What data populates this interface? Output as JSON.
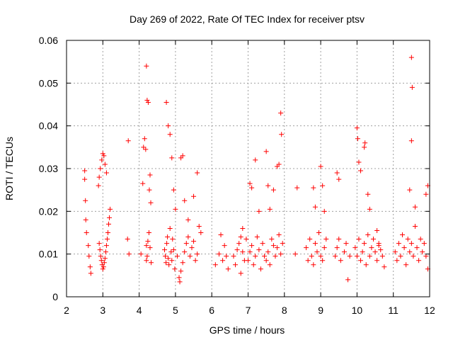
{
  "chart_data": {
    "type": "scatter",
    "title": "Day 269 of 2022, Rate Of TEC Index for receiver ptsv",
    "xlabel": "GPS time / hours",
    "ylabel": "ROTI / TECUs",
    "xlim": [
      2,
      12
    ],
    "ylim": [
      0,
      0.06
    ],
    "xticks": [
      "2",
      "3",
      "4",
      "5",
      "6",
      "7",
      "8",
      "9",
      "10",
      "11",
      "12"
    ],
    "yticks": [
      "0",
      "0.01",
      "0.02",
      "0.03",
      "0.04",
      "0.05",
      "0.06"
    ],
    "grid": true,
    "marker": "plus",
    "color": "#ff0000",
    "series": [
      {
        "name": "ROTI",
        "x": [
          2.5,
          2.5,
          2.52,
          2.53,
          2.55,
          2.6,
          2.62,
          2.65,
          2.67,
          2.9,
          2.92,
          2.94,
          2.96,
          2.98,
          3.0,
          3.02,
          3.04,
          3.06,
          3.08,
          3.1,
          3.12,
          3.14,
          3.16,
          3.18,
          3.2,
          2.88,
          2.9,
          2.93,
          2.97,
          3.0,
          3.03,
          3.06,
          3.1,
          3.7,
          3.72,
          3.68,
          4.05,
          4.1,
          4.12,
          4.15,
          4.18,
          4.2,
          4.22,
          4.25,
          4.28,
          4.3,
          4.32,
          4.2,
          4.2,
          4.22,
          4.24,
          4.27,
          4.3,
          4.33,
          4.7,
          4.72,
          4.74,
          4.76,
          4.78,
          4.8,
          4.82,
          4.85,
          4.88,
          4.9,
          4.92,
          4.95,
          4.98,
          5.0,
          4.75,
          4.8,
          4.85,
          4.9,
          4.95,
          5.05,
          5.1,
          5.12,
          5.15,
          5.2,
          5.25,
          5.3,
          5.35,
          5.4,
          5.45,
          5.5,
          5.55,
          5.6,
          5.65,
          5.7,
          5.15,
          5.2,
          5.25,
          5.35,
          5.5,
          5.6,
          6.1,
          6.2,
          6.25,
          6.3,
          6.35,
          6.4,
          6.45,
          6.6,
          6.65,
          6.7,
          6.75,
          6.8,
          6.85,
          6.9,
          6.95,
          6.8,
          6.85,
          7.0,
          7.05,
          7.1,
          7.15,
          7.2,
          7.25,
          7.3,
          7.35,
          7.4,
          7.45,
          7.5,
          7.55,
          7.6,
          7.65,
          7.7,
          7.75,
          7.8,
          7.85,
          7.9,
          7.95,
          7.05,
          7.1,
          7.2,
          7.3,
          7.5,
          7.55,
          7.6,
          7.7,
          7.8,
          7.85,
          7.9,
          7.92,
          8.3,
          8.35,
          8.6,
          8.65,
          8.7,
          8.75,
          8.8,
          8.85,
          8.9,
          8.95,
          9.0,
          9.05,
          9.1,
          9.15,
          8.8,
          8.85,
          9.0,
          9.05,
          9.1,
          9.4,
          9.45,
          9.5,
          9.55,
          9.65,
          9.7,
          9.75,
          9.8,
          9.45,
          9.5,
          9.95,
          10.0,
          10.05,
          10.1,
          10.15,
          10.2,
          10.25,
          10.3,
          10.35,
          10.4,
          10.45,
          10.5,
          10.55,
          10.6,
          10.65,
          10.7,
          10.75,
          10.0,
          10.02,
          10.05,
          10.1,
          10.2,
          10.22,
          10.3,
          10.35,
          10.55,
          10.6,
          11.05,
          11.1,
          11.15,
          11.2,
          11.25,
          11.3,
          11.35,
          11.4,
          11.45,
          11.5,
          11.55,
          11.6,
          11.65,
          11.7,
          11.75,
          11.8,
          11.85,
          11.9,
          11.95,
          11.5,
          11.52,
          11.5,
          11.45,
          11.6,
          11.95,
          11.9
        ],
        "y": [
          0.0295,
          0.0275,
          0.0225,
          0.018,
          0.015,
          0.012,
          0.0095,
          0.007,
          0.0055,
          0.0125,
          0.011,
          0.0095,
          0.0085,
          0.0075,
          0.0065,
          0.007,
          0.008,
          0.009,
          0.0105,
          0.012,
          0.0135,
          0.015,
          0.017,
          0.0185,
          0.0205,
          0.026,
          0.028,
          0.03,
          0.032,
          0.0335,
          0.033,
          0.031,
          0.029,
          0.0365,
          0.01,
          0.0135,
          0.01,
          0.0265,
          0.035,
          0.037,
          0.0345,
          0.054,
          0.046,
          0.0455,
          0.025,
          0.0285,
          0.022,
          0.012,
          0.0085,
          0.0095,
          0.013,
          0.015,
          0.0115,
          0.008,
          0.011,
          0.0095,
          0.008,
          0.0125,
          0.014,
          0.009,
          0.0075,
          0.016,
          0.0105,
          0.0085,
          0.0135,
          0.011,
          0.0065,
          0.0205,
          0.0455,
          0.04,
          0.038,
          0.0325,
          0.025,
          0.0095,
          0.0045,
          0.0035,
          0.006,
          0.008,
          0.0105,
          0.0125,
          0.014,
          0.0095,
          0.0115,
          0.013,
          0.0085,
          0.01,
          0.0165,
          0.015,
          0.0325,
          0.033,
          0.0225,
          0.018,
          0.0235,
          0.029,
          0.0075,
          0.01,
          0.0145,
          0.0085,
          0.012,
          0.0095,
          0.0065,
          0.0095,
          0.0075,
          0.011,
          0.0125,
          0.014,
          0.0105,
          0.0085,
          0.0135,
          0.0055,
          0.016,
          0.0085,
          0.0105,
          0.012,
          0.0075,
          0.0095,
          0.014,
          0.011,
          0.0065,
          0.0125,
          0.0095,
          0.0085,
          0.0105,
          0.0075,
          0.0135,
          0.012,
          0.0095,
          0.0115,
          0.0145,
          0.01,
          0.0125,
          0.0265,
          0.0255,
          0.032,
          0.02,
          0.034,
          0.026,
          0.0205,
          0.025,
          0.0305,
          0.031,
          0.043,
          0.038,
          0.01,
          0.0255,
          0.0115,
          0.0085,
          0.0135,
          0.0095,
          0.0075,
          0.0125,
          0.0105,
          0.015,
          0.0095,
          0.0085,
          0.0115,
          0.0135,
          0.0255,
          0.021,
          0.0305,
          0.026,
          0.02,
          0.0095,
          0.0115,
          0.0135,
          0.0085,
          0.0105,
          0.0125,
          0.004,
          0.0095,
          0.029,
          0.0275,
          0.0115,
          0.0095,
          0.0135,
          0.0085,
          0.0105,
          0.0125,
          0.0075,
          0.0145,
          0.0095,
          0.0115,
          0.0135,
          0.0105,
          0.0085,
          0.0125,
          0.011,
          0.0095,
          0.007,
          0.0395,
          0.037,
          0.0315,
          0.0295,
          0.035,
          0.036,
          0.024,
          0.0205,
          0.0155,
          0.012,
          0.0105,
          0.0085,
          0.0125,
          0.0095,
          0.0145,
          0.0115,
          0.0075,
          0.0135,
          0.0105,
          0.0125,
          0.0095,
          0.0165,
          0.0115,
          0.0085,
          0.0135,
          0.0105,
          0.0125,
          0.0095,
          0.0065,
          0.056,
          0.049,
          0.0365,
          0.025,
          0.021,
          0.026,
          0.024
        ]
      }
    ]
  }
}
